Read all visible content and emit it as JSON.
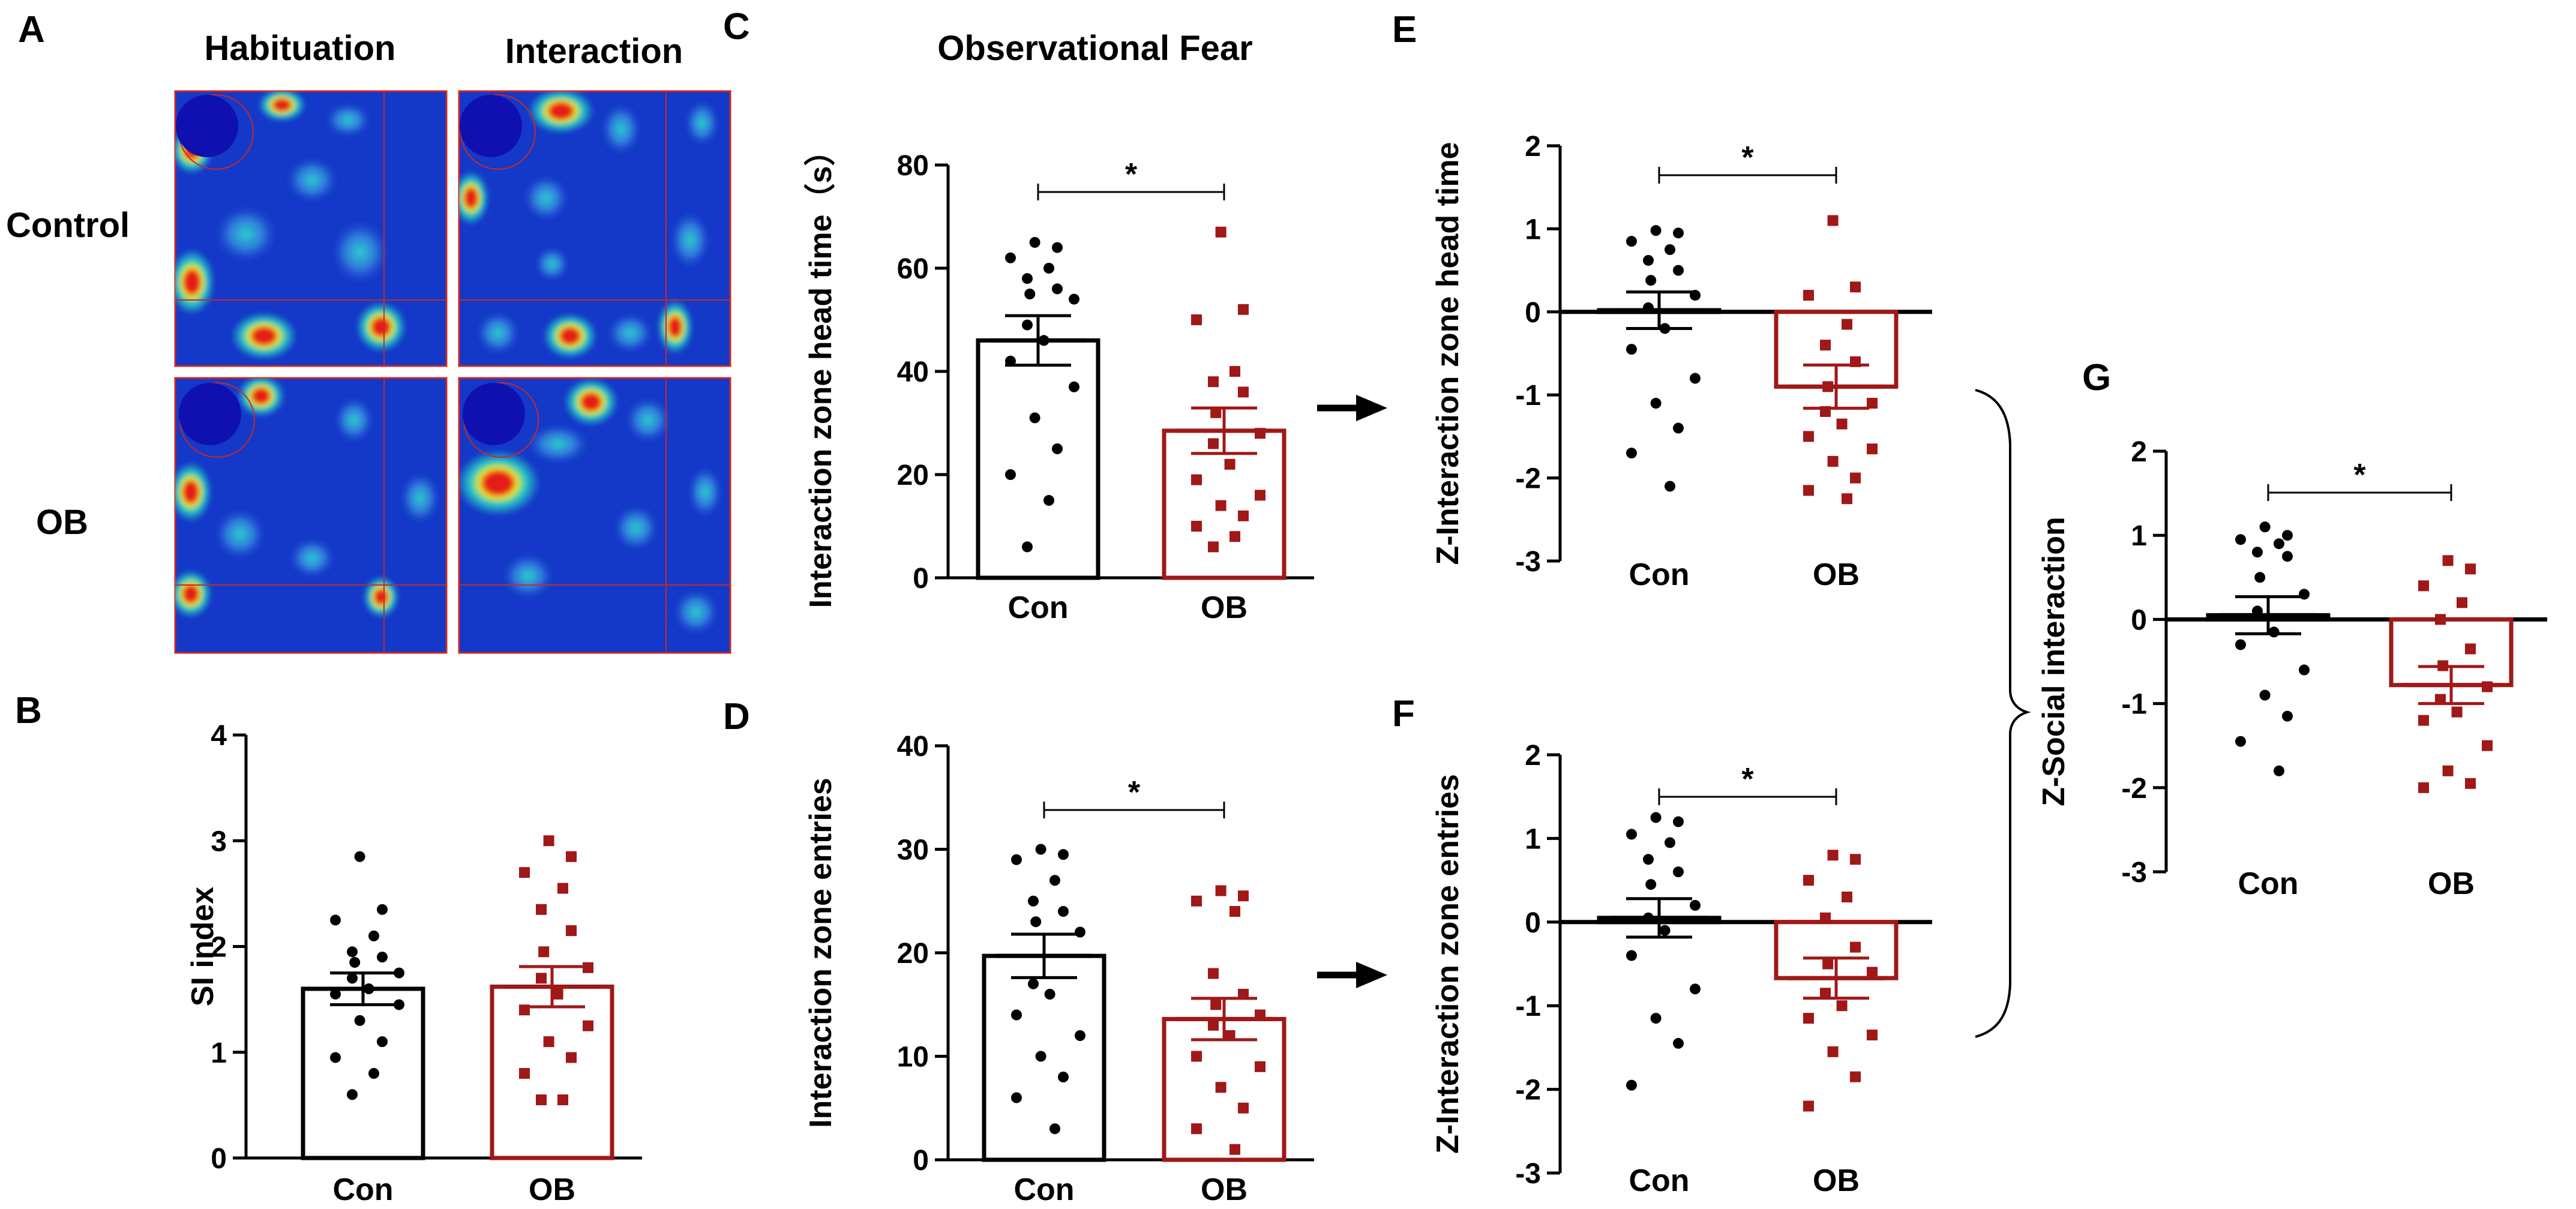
{
  "colors": {
    "con": "#000000",
    "ob": "#a01818",
    "heat_bg": "#1438c8",
    "heat_mid": "#28d2c8",
    "heat_hi": "#f0e628",
    "heat_peak": "#e61e14",
    "zone_circle": "#1010b0",
    "grid_line": "#c82828"
  },
  "panel_labels": {
    "a": "A",
    "b": "B",
    "c": "C",
    "d": "D",
    "e": "E",
    "f": "F",
    "g": "G"
  },
  "heatmaps": {
    "col_labels": [
      "Habituation",
      "Interaction"
    ],
    "row_labels": [
      "Control",
      "OB"
    ]
  },
  "arrows": [
    "arrow-right-icon",
    "arrow-right-icon"
  ],
  "chart_data": [
    {
      "id": "b",
      "type": "bar",
      "panel": "B",
      "title": "",
      "xlabel": "",
      "ylabel": "SI index",
      "ylim": [
        0,
        4
      ],
      "yticks": [
        0,
        1,
        2,
        3,
        4
      ],
      "tick_labels": [
        "0",
        "1",
        "2",
        "3",
        "4"
      ],
      "zero_line": false,
      "sig": null,
      "categories": [
        "Con",
        "OB"
      ],
      "series": [
        {
          "name": "Con",
          "mean": 1.6,
          "sem": 0.15,
          "points": [
            2.85,
            2.35,
            2.25,
            2.1,
            1.95,
            1.9,
            1.85,
            1.75,
            1.7,
            1.6,
            1.55,
            1.45,
            1.3,
            1.1,
            0.95,
            0.8,
            0.6
          ]
        },
        {
          "name": "OB",
          "mean": 1.62,
          "sem": 0.19,
          "points": [
            3.0,
            2.85,
            2.7,
            2.55,
            2.35,
            2.15,
            1.95,
            1.8,
            1.7,
            1.55,
            1.4,
            1.25,
            1.1,
            0.95,
            0.8,
            0.55,
            0.55
          ]
        }
      ]
    },
    {
      "id": "c",
      "type": "bar",
      "panel": "C",
      "title": "Observational Fear",
      "xlabel": "",
      "ylabel": "Interaction zone head time（s）",
      "ylim": [
        0,
        80
      ],
      "yticks": [
        0,
        20,
        40,
        60,
        80
      ],
      "tick_labels": [
        "0",
        "20",
        "40",
        "60",
        "80"
      ],
      "zero_line": false,
      "sig": "*",
      "categories": [
        "Con",
        "OB"
      ],
      "series": [
        {
          "name": "Con",
          "mean": 46,
          "sem": 4.8,
          "points": [
            65,
            64,
            62,
            60,
            58,
            56,
            55,
            54,
            49,
            46,
            42,
            37,
            31,
            25,
            20,
            15,
            6
          ]
        },
        {
          "name": "OB",
          "mean": 28.5,
          "sem": 4.4,
          "points": [
            67,
            52,
            50,
            40,
            38,
            36,
            32,
            28,
            26,
            22,
            19,
            16,
            14,
            12,
            10,
            8,
            6
          ]
        }
      ]
    },
    {
      "id": "d",
      "type": "bar",
      "panel": "D",
      "title": "",
      "xlabel": "",
      "ylabel": "Interaction zone entries",
      "ylim": [
        0,
        40
      ],
      "yticks": [
        0,
        10,
        20,
        30,
        40
      ],
      "tick_labels": [
        "0",
        "10",
        "20",
        "30",
        "40"
      ],
      "zero_line": false,
      "sig": "*",
      "categories": [
        "Con",
        "OB"
      ],
      "series": [
        {
          "name": "Con",
          "mean": 19.7,
          "sem": 2.1,
          "points": [
            30,
            29.5,
            29,
            27,
            25,
            24,
            23,
            22,
            17,
            16,
            14,
            12,
            10,
            8,
            6,
            3
          ]
        },
        {
          "name": "OB",
          "mean": 13.6,
          "sem": 2.0,
          "points": [
            26,
            25.5,
            25,
            24,
            18,
            16,
            15,
            14,
            13,
            12,
            10,
            9,
            7,
            5,
            3,
            1
          ]
        }
      ]
    },
    {
      "id": "e",
      "type": "bar",
      "panel": "E",
      "title": "",
      "xlabel": "",
      "ylabel": "Z-Interaction zone head time",
      "ylim": [
        -3,
        2
      ],
      "yticks": [
        -3,
        -2,
        -1,
        0,
        1,
        2
      ],
      "tick_labels": [
        "-3",
        "-2",
        "-1",
        "0",
        "1",
        "2"
      ],
      "zero_line": true,
      "sig": "*",
      "categories": [
        "Con",
        "OB"
      ],
      "series": [
        {
          "name": "Con",
          "mean": 0.02,
          "sem": 0.22,
          "points": [
            0.98,
            0.95,
            0.85,
            0.75,
            0.62,
            0.5,
            0.38,
            0.2,
            0.05,
            -0.2,
            -0.45,
            -0.8,
            -1.1,
            -1.4,
            -1.7,
            -2.1
          ]
        },
        {
          "name": "OB",
          "mean": -0.9,
          "sem": 0.26,
          "points": [
            1.1,
            0.3,
            0.2,
            -0.15,
            -0.4,
            -0.6,
            -0.9,
            -1.1,
            -1.2,
            -1.35,
            -1.5,
            -1.65,
            -1.8,
            -2.0,
            -2.15,
            -2.25
          ]
        }
      ]
    },
    {
      "id": "f",
      "type": "bar",
      "panel": "F",
      "title": "",
      "xlabel": "",
      "ylabel": "Z-Interaction zone entries",
      "ylim": [
        -3,
        2
      ],
      "yticks": [
        -3,
        -2,
        -1,
        0,
        1,
        2
      ],
      "tick_labels": [
        "-3",
        "-2",
        "-1",
        "0",
        "1",
        "2"
      ],
      "zero_line": true,
      "sig": "*",
      "categories": [
        "Con",
        "OB"
      ],
      "series": [
        {
          "name": "Con",
          "mean": 0.05,
          "sem": 0.23,
          "points": [
            1.25,
            1.2,
            1.05,
            0.95,
            0.75,
            0.6,
            0.45,
            0.2,
            0.05,
            -0.1,
            -0.4,
            -0.8,
            -1.15,
            -1.45,
            -1.95
          ]
        },
        {
          "name": "OB",
          "mean": -0.67,
          "sem": 0.24,
          "points": [
            0.8,
            0.75,
            0.5,
            0.3,
            0.05,
            -0.3,
            -0.5,
            -0.6,
            -0.85,
            -1.0,
            -1.15,
            -1.35,
            -1.55,
            -1.85,
            -2.2
          ]
        }
      ]
    },
    {
      "id": "g",
      "type": "bar",
      "panel": "G",
      "title": "",
      "xlabel": "",
      "ylabel": "Z-Social interaction",
      "ylim": [
        -3,
        2
      ],
      "yticks": [
        -3,
        -2,
        -1,
        0,
        1,
        2
      ],
      "tick_labels": [
        "-3",
        "-2",
        "-1",
        "0",
        "1",
        "2"
      ],
      "zero_line": true,
      "sig": "*",
      "categories": [
        "Con",
        "OB"
      ],
      "series": [
        {
          "name": "Con",
          "mean": 0.05,
          "sem": 0.22,
          "points": [
            1.1,
            1.0,
            0.95,
            0.9,
            0.8,
            0.75,
            0.5,
            0.3,
            0.1,
            -0.15,
            -0.3,
            -0.6,
            -0.9,
            -1.15,
            -1.45,
            -1.8
          ]
        },
        {
          "name": "OB",
          "mean": -0.78,
          "sem": 0.22,
          "points": [
            0.7,
            0.6,
            0.4,
            0.2,
            0.0,
            -0.35,
            -0.55,
            -0.8,
            -0.95,
            -1.1,
            -1.2,
            -1.5,
            -1.8,
            -1.95,
            -2.0
          ]
        }
      ]
    }
  ]
}
